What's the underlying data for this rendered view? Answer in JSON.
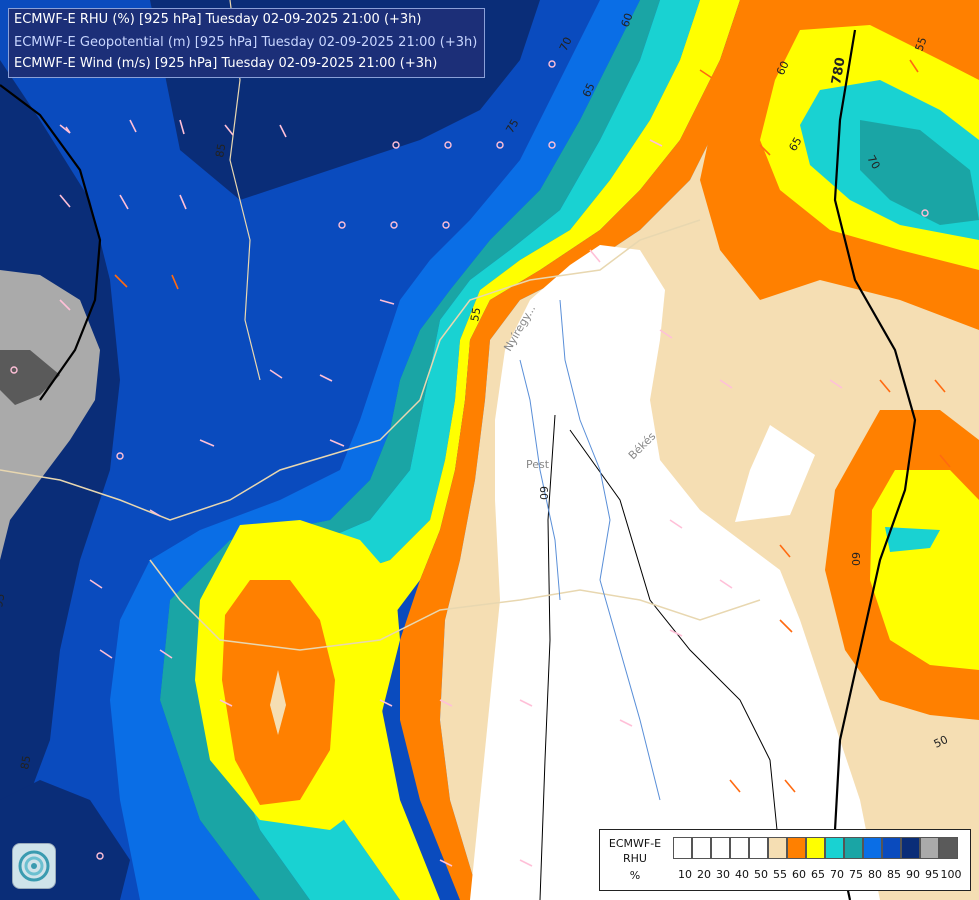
{
  "header": {
    "line1": "ECMWF-E RHU (%) [925 hPa] Tuesday 02-09-2025 21:00 (+3h)",
    "line2": "ECMWF-E Geopotential (m) [925 hPa] Tuesday 02-09-2025 21:00 (+3h)",
    "line3": "ECMWF-E Wind (m/s) [925 hPa] Tuesday 02-09-2025 21:00 (+3h)"
  },
  "legend": {
    "title": [
      "ECMWF-E",
      "RHU",
      "%"
    ],
    "ticks": [
      "10",
      "20",
      "30",
      "40",
      "50",
      "55",
      "60",
      "65",
      "70",
      "75",
      "80",
      "85",
      "90",
      "95",
      "100"
    ],
    "colors": [
      "#ffffff",
      "#ffffff",
      "#ffffff",
      "#ffffff",
      "#ffffff",
      "#f5deb3",
      "#ff8000",
      "#ffff00",
      "#19d2d2",
      "#1aa5a5",
      "#0a6ee6",
      "#0a4bbe",
      "#0a2d78",
      "#aaaaaa",
      "#5a5a5a"
    ]
  },
  "contour_labels": [
    "60",
    "70",
    "75",
    "65",
    "55",
    "85",
    "60",
    "55",
    "60",
    "780",
    "65",
    "70",
    "95",
    "85",
    "60",
    "50",
    "50"
  ],
  "place_labels": [
    "Nyíregy...",
    "Pest",
    "Békés"
  ],
  "icon": "ecmwf-logo-icon"
}
